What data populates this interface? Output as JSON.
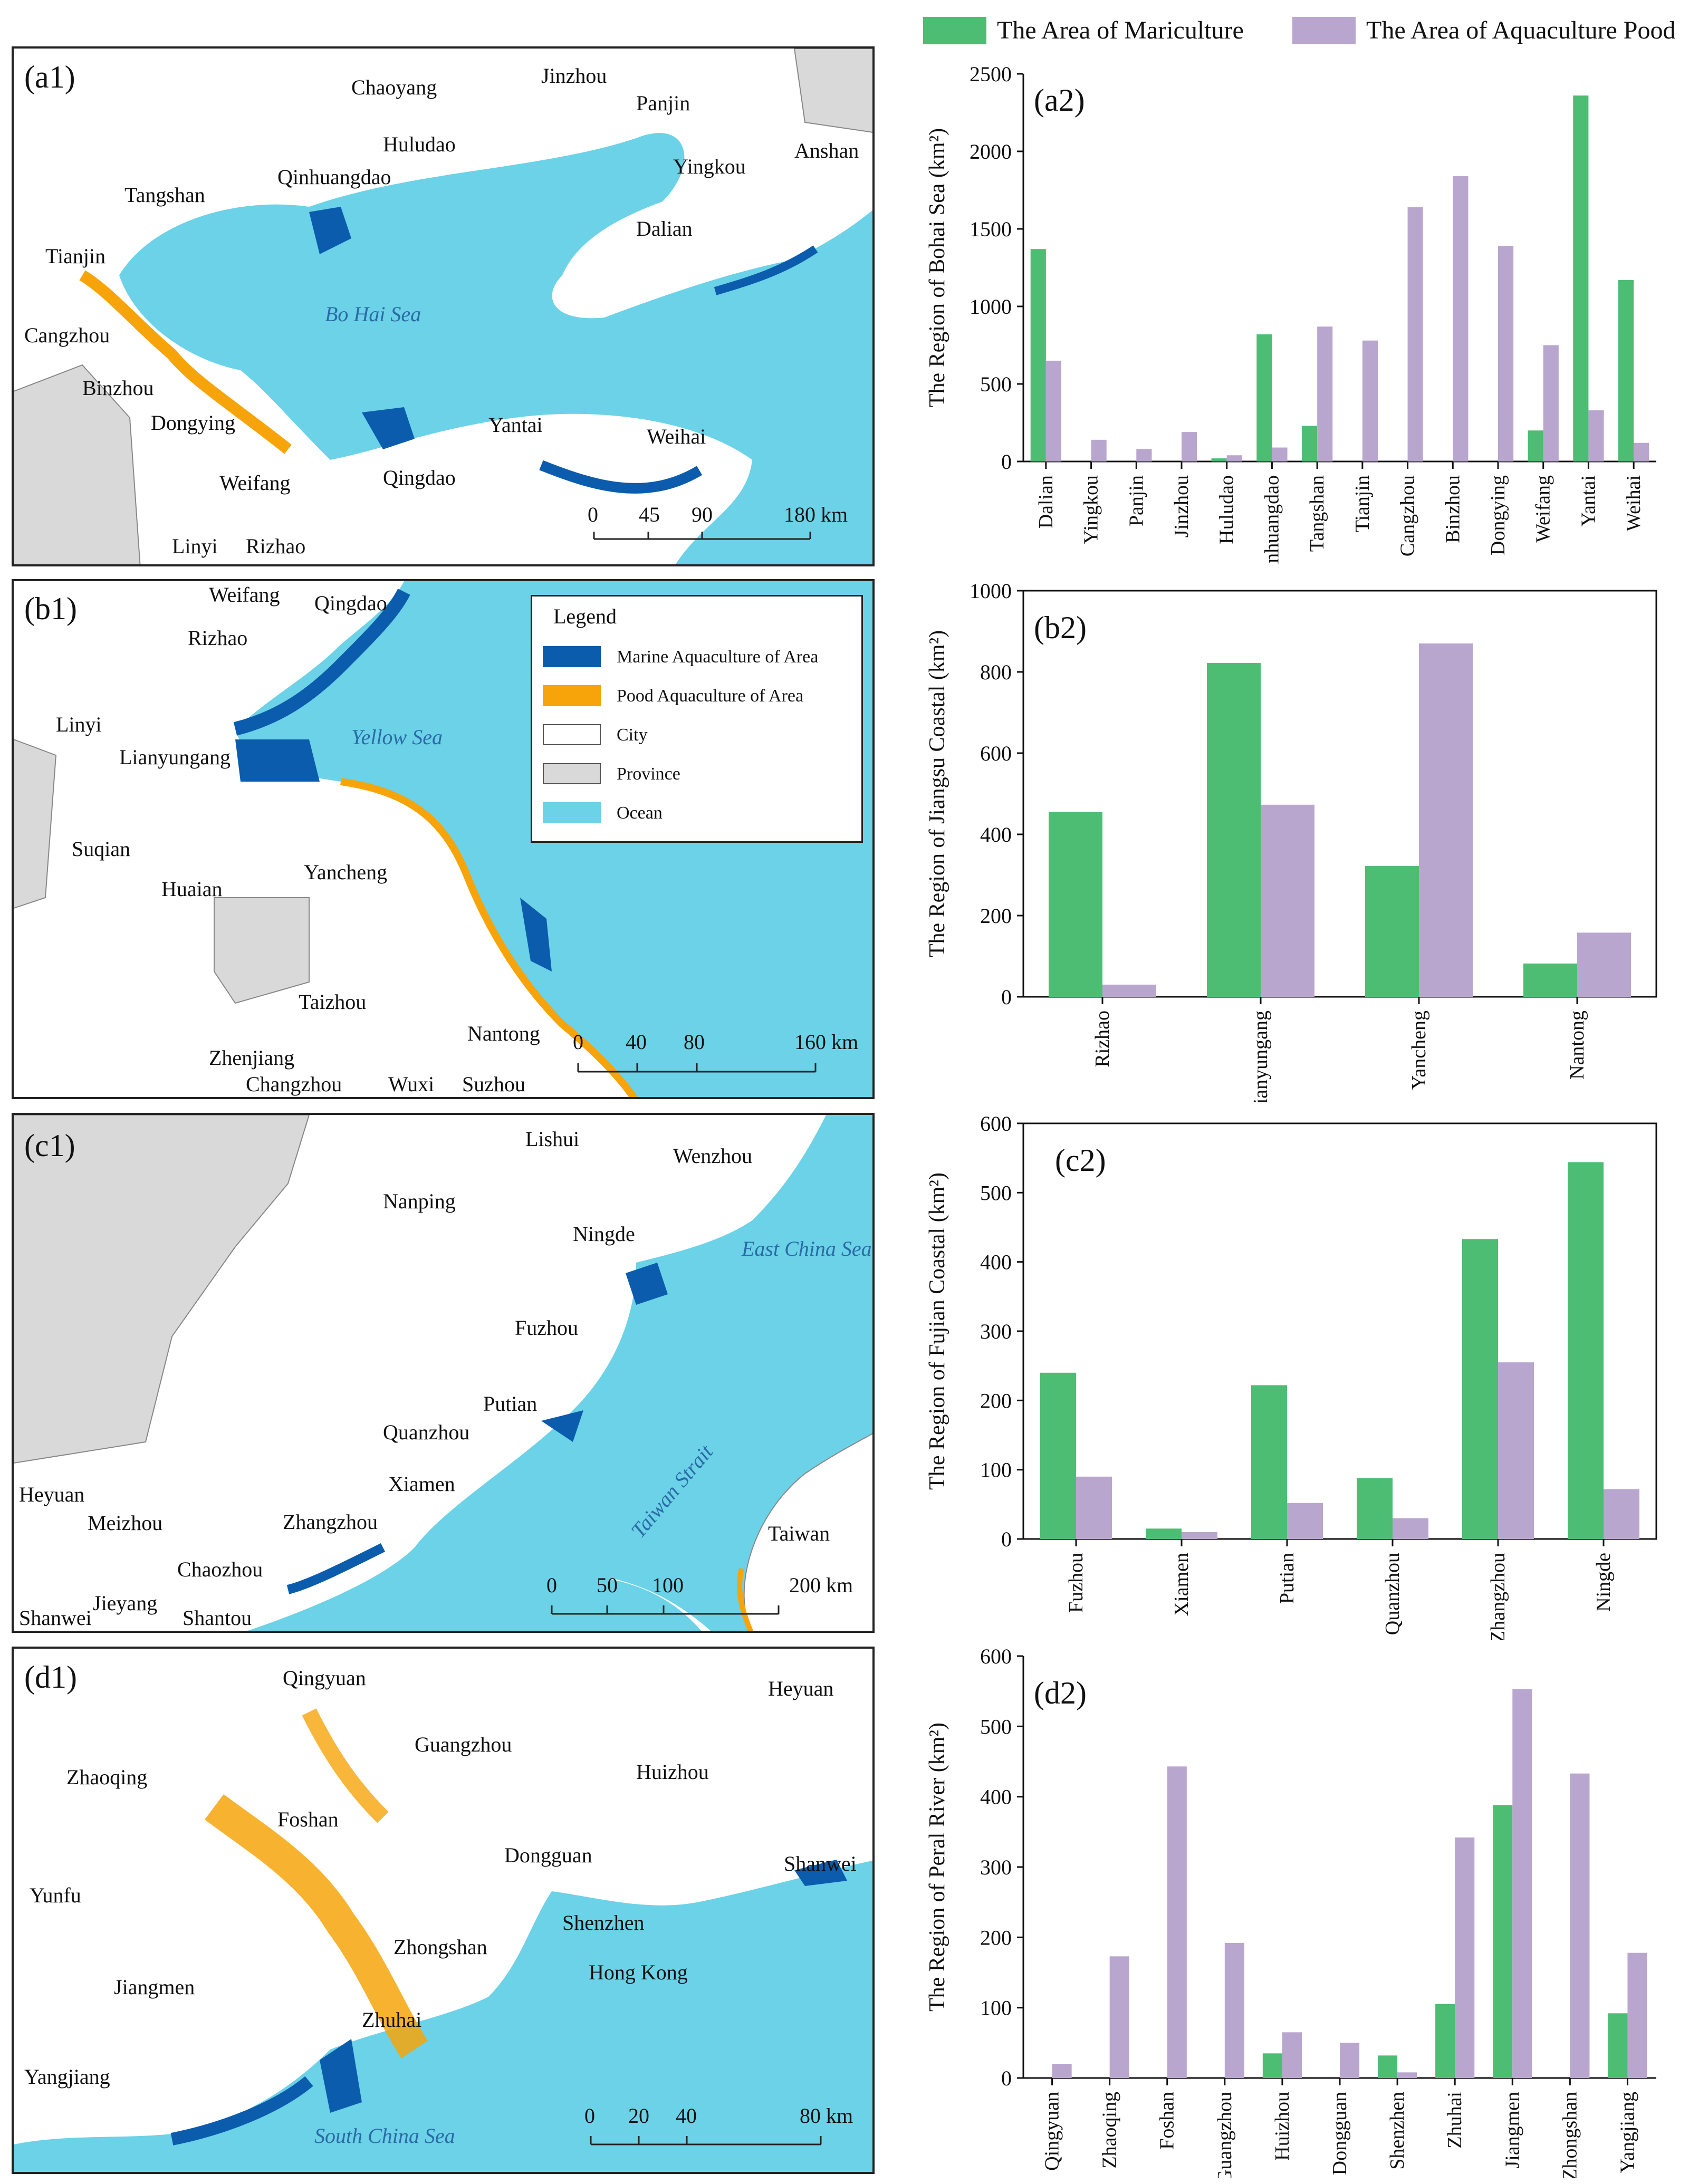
{
  "legend_top": {
    "mariculture_label": "The Area of Mariculture",
    "pond_label": "The Area of Aquaculture Pood"
  },
  "colors": {
    "mariculture": "#4cbd73",
    "pond": "#b9a6cf",
    "ocean": "#6bd2e7",
    "marine_area": "#0b5cad",
    "pond_area": "#f6a40a",
    "province": "#d9d9d9",
    "city": "#ffffff"
  },
  "maps": {
    "a1": {
      "tag": "(a1)",
      "sea_label": "Bo Hai Sea",
      "cities": [
        "Chaoyang",
        "Jinzhou",
        "Panjin",
        "Anshan",
        "Huludao",
        "Yingkou",
        "Qinhuangdao",
        "Tangshan",
        "Dalian",
        "Tianjin",
        "Cangzhou",
        "Binzhou",
        "Dongying",
        "Yantai",
        "Weihai",
        "Weifang",
        "Qingdao",
        "Linyi",
        "Rizhao"
      ],
      "scale": [
        "0",
        "45",
        "90",
        "180 km"
      ]
    },
    "b1": {
      "tag": "(b1)",
      "sea_label": "Yellow Sea",
      "cities": [
        "Weifang",
        "Qingdao",
        "Rizhao",
        "Linyi",
        "Lianyungang",
        "Suqian",
        "Huaian",
        "Yancheng",
        "Taizhou",
        "Nantong",
        "Zhenjiang",
        "Changzhou",
        "Wuxi",
        "Suzhou"
      ],
      "scale": [
        "0",
        "40",
        "80",
        "160 km"
      ],
      "legend": {
        "title": "Legend",
        "items": [
          "Marine Aquaculture of Area",
          "Pood Aquaculture of Area",
          "City",
          "Province",
          "Ocean"
        ]
      }
    },
    "c1": {
      "tag": "(c1)",
      "sea_labels": [
        "East China Sea",
        "Taiwan Strait"
      ],
      "cities": [
        "Lishui",
        "Wenzhou",
        "Nanping",
        "Ningde",
        "Fuzhou",
        "Putian",
        "Quanzhou",
        "Xiamen",
        "Heyuan",
        "Meizhou",
        "Zhangzhou",
        "Chaozhou",
        "Jieyang",
        "Shanwei",
        "Shantou",
        "Taiwan"
      ],
      "scale": [
        "0",
        "50",
        "100",
        "200 km"
      ]
    },
    "d1": {
      "tag": "(d1)",
      "sea_label": "South China Sea",
      "cities": [
        "Qingyuan",
        "Heyuan",
        "Guangzhou",
        "Zhaoqing",
        "Huizhou",
        "Foshan",
        "Dongguan",
        "Shanwei",
        "Yunfu",
        "Shenzhen",
        "Zhongshan",
        "Jiangmen",
        "Hong Kong",
        "Zhuhai",
        "Yangjiang"
      ],
      "scale": [
        "0",
        "20",
        "40",
        "80 km"
      ]
    }
  },
  "chart_data": [
    {
      "id": "a2",
      "tag": "(a2)",
      "type": "bar",
      "ylabel": "The Region of Bohai Sea (km²)",
      "ylim": [
        0,
        2500
      ],
      "yticks": [
        0,
        500,
        1000,
        1500,
        2000,
        2500
      ],
      "categories": [
        "Dalian",
        "Yingkou",
        "Panjin",
        "Jinzhou",
        "Huludao",
        "Qinhuangdao",
        "Tangshan",
        "Tianjin",
        "Cangzhou",
        "Binzhou",
        "Dongying",
        "Weifang",
        "Yantai",
        "Weihai"
      ],
      "series": [
        {
          "name": "The Area of Mariculture",
          "values": [
            1370,
            0,
            0,
            0,
            20,
            820,
            230,
            0,
            0,
            0,
            0,
            200,
            2360,
            1170
          ]
        },
        {
          "name": "The Area of Aquaculture Pood",
          "values": [
            650,
            140,
            80,
            190,
            40,
            90,
            870,
            780,
            1640,
            1840,
            1390,
            750,
            330,
            120
          ]
        }
      ]
    },
    {
      "id": "b2",
      "tag": "(b2)",
      "type": "bar",
      "ylabel": "The Region of Jiangsu Coastal (km²)",
      "ylim": [
        0,
        1000
      ],
      "yticks": [
        0,
        200,
        400,
        600,
        800,
        1000
      ],
      "categories": [
        "Rizhao",
        "Lianyungang",
        "Yancheng",
        "Nantong"
      ],
      "series": [
        {
          "name": "The Area of Mariculture",
          "values": [
            455,
            822,
            322,
            82
          ]
        },
        {
          "name": "The Area of Aquaculture Pood",
          "values": [
            30,
            473,
            870,
            158
          ]
        }
      ]
    },
    {
      "id": "c2",
      "tag": "(c2)",
      "type": "bar",
      "ylabel": "The Region of Fujian Coastal (km²)",
      "ylim": [
        0,
        600
      ],
      "yticks": [
        0,
        100,
        200,
        300,
        400,
        500,
        600
      ],
      "categories": [
        "Fuzhou",
        "Xiamen",
        "Putian",
        "Quanzhou",
        "Zhangzhou",
        "Ningde"
      ],
      "series": [
        {
          "name": "The Area of Mariculture",
          "values": [
            240,
            15,
            222,
            88,
            433,
            544
          ]
        },
        {
          "name": "The Area of Aquaculture Pood",
          "values": [
            90,
            10,
            52,
            30,
            255,
            72
          ]
        }
      ]
    },
    {
      "id": "d2",
      "tag": "(d2)",
      "type": "bar",
      "ylabel": "The Region of Peral River (km²)",
      "ylim": [
        0,
        600
      ],
      "yticks": [
        0,
        100,
        200,
        300,
        400,
        500,
        600
      ],
      "categories": [
        "Qingyuan",
        "Zhaoqing",
        "Foshan",
        "Guangzhou",
        "Huizhou",
        "Dongguan",
        "Shenzhen",
        "Zhuhai",
        "Jiangmen",
        "Zhongshan",
        "Yangjiang"
      ],
      "series": [
        {
          "name": "The Area of Mariculture",
          "values": [
            0,
            0,
            0,
            0,
            35,
            0,
            32,
            105,
            388,
            0,
            92
          ]
        },
        {
          "name": "The Area of Aquaculture Pood",
          "values": [
            20,
            173,
            443,
            192,
            65,
            50,
            8,
            342,
            553,
            433,
            178
          ]
        }
      ]
    }
  ]
}
